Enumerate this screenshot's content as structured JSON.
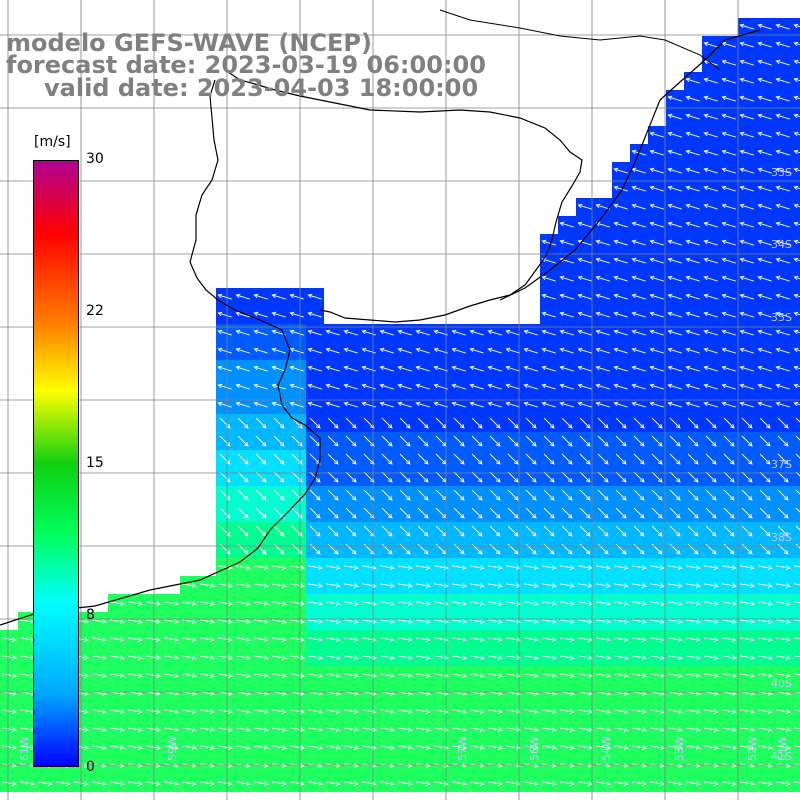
{
  "title": {
    "line1": "modelo GEFS-WAVE (NCEP)",
    "line2": "forecast date: 2023-03-19 06:00:00",
    "line3": "valid date: 2023-04-03 18:00:00"
  },
  "colorbar": {
    "unit": "[m/s]",
    "ticks": [
      "30",
      "22",
      "15",
      "8",
      "0"
    ],
    "colors": [
      "#0000ff",
      "#00a8ff",
      "#00ffff",
      "#00ff60",
      "#10d010",
      "#ffff00",
      "#ff8000",
      "#ff0000",
      "#b00090"
    ]
  },
  "lat_labels": [
    "33S",
    "34S",
    "35S",
    "37S",
    "38S",
    "40S",
    "41S"
  ],
  "lon_labels": [
    "61W",
    "59W",
    "57W",
    "56W",
    "54W",
    "53W",
    "52W",
    "51W"
  ],
  "colors": {
    "land": "#ffffff",
    "coastline": "#000000",
    "grid": "#808080",
    "arrows": "#ffffff",
    "title": "#808080"
  }
}
